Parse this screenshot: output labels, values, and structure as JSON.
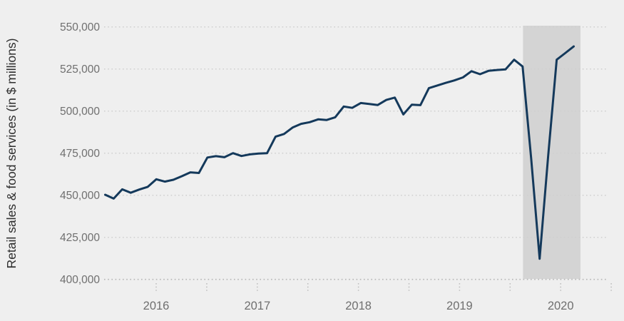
{
  "chart": {
    "background_color": "#efefef",
    "line_color": "#14395b",
    "recession_band_color": "#d4d4d4",
    "gridline_color": "#cfcfcf",
    "axisline_color": "#b5b5b5",
    "tick_label_color": "#6f6f6f",
    "axis_title_color": "#2e2e2e"
  },
  "chart_data": {
    "type": "line",
    "title": "",
    "xlabel": "",
    "ylabel": "Retail sales & food services (in $ millions)",
    "ylim": [
      400000,
      550000
    ],
    "grid": "horizontal-dotted",
    "legend": "none",
    "y_ticks": [
      {
        "value": 400000,
        "label": "400,000"
      },
      {
        "value": 425000,
        "label": "425,000"
      },
      {
        "value": 450000,
        "label": "450,000"
      },
      {
        "value": 475000,
        "label": "475,000"
      },
      {
        "value": 500000,
        "label": "500,000"
      },
      {
        "value": 525000,
        "label": "525,000"
      },
      {
        "value": 550000,
        "label": "550,000"
      }
    ],
    "x_year_labels": [
      "2016",
      "2017",
      "2018",
      "2019",
      "2020"
    ],
    "months": [
      "2016-01",
      "2016-02",
      "2016-03",
      "2016-04",
      "2016-05",
      "2016-06",
      "2016-07",
      "2016-08",
      "2016-09",
      "2016-10",
      "2016-11",
      "2016-12",
      "2017-01",
      "2017-02",
      "2017-03",
      "2017-04",
      "2017-05",
      "2017-06",
      "2017-07",
      "2017-08",
      "2017-09",
      "2017-10",
      "2017-11",
      "2017-12",
      "2018-01",
      "2018-02",
      "2018-03",
      "2018-04",
      "2018-05",
      "2018-06",
      "2018-07",
      "2018-08",
      "2018-09",
      "2018-10",
      "2018-11",
      "2018-12",
      "2019-01",
      "2019-02",
      "2019-03",
      "2019-04",
      "2019-05",
      "2019-06",
      "2019-07",
      "2019-08",
      "2019-09",
      "2019-10",
      "2019-11",
      "2019-12",
      "2020-01",
      "2020-02",
      "2020-03",
      "2020-04",
      "2020-05",
      "2020-06",
      "2020-07",
      "2020-08"
    ],
    "values": [
      450300,
      448000,
      453500,
      451500,
      453400,
      455000,
      459500,
      458100,
      459200,
      461300,
      463600,
      463200,
      472400,
      473200,
      472600,
      475000,
      473300,
      474300,
      474800,
      475000,
      484800,
      486400,
      490200,
      492400,
      493400,
      495100,
      494700,
      496300,
      502700,
      501900,
      504800,
      504200,
      503600,
      506600,
      508000,
      498000,
      503800,
      503500,
      513600,
      515200,
      516800,
      518200,
      520000,
      523700,
      521900,
      523900,
      524400,
      524800,
      530500,
      526500,
      472000,
      412300,
      473000,
      530500,
      534400,
      538400
    ],
    "recession_shading": {
      "start_month": "2020-02",
      "end": "chart-end"
    }
  }
}
